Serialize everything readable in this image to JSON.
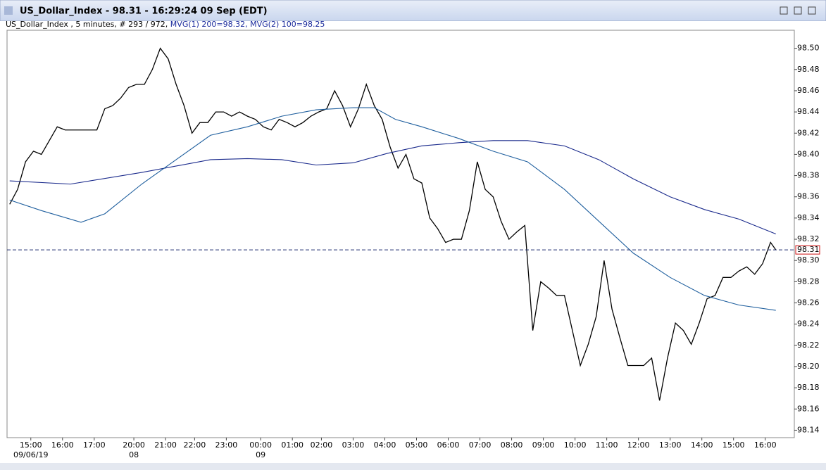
{
  "window_title": "US_Dollar_Index - 98.31 - 16:29:24  09 Sep (EDT)",
  "info_text": "US_Dollar_Index , 5 minutes, # 293 / 972, ",
  "ma_text": "MVG(1) 200=98.32, MVG(2) 100=98.25",
  "chart_data": {
    "type": "line",
    "last_price": 98.31,
    "xlim": [
      -1,
      297
    ],
    "ylim": [
      98.133,
      98.517
    ],
    "xticks": [
      {
        "value": 8,
        "label": "15:00"
      },
      {
        "value": 20,
        "label": "16:00"
      },
      {
        "value": 32,
        "label": "17:00"
      },
      {
        "value": 47,
        "label": "20:00"
      },
      {
        "value": 59,
        "label": "21:00"
      },
      {
        "value": 70,
        "label": "22:00"
      },
      {
        "value": 82,
        "label": "23:00"
      },
      {
        "value": 95,
        "label": "00:00"
      },
      {
        "value": 107,
        "label": "01:00"
      },
      {
        "value": 118,
        "label": "02:00"
      },
      {
        "value": 130,
        "label": "03:00"
      },
      {
        "value": 142,
        "label": "04:00"
      },
      {
        "value": 154,
        "label": "05:00"
      },
      {
        "value": 166,
        "label": "06:00"
      },
      {
        "value": 178,
        "label": "07:00"
      },
      {
        "value": 190,
        "label": "08:00"
      },
      {
        "value": 202,
        "label": "09:00"
      },
      {
        "value": 214,
        "label": "10:00"
      },
      {
        "value": 226,
        "label": "11:00"
      },
      {
        "value": 238,
        "label": "12:00"
      },
      {
        "value": 250,
        "label": "13:00"
      },
      {
        "value": 262,
        "label": "14:00"
      },
      {
        "value": 274,
        "label": "15:00"
      },
      {
        "value": 286,
        "label": "16:00"
      }
    ],
    "xdates": [
      {
        "value": 8,
        "label": "09/06/19"
      },
      {
        "value": 47,
        "label": "08"
      },
      {
        "value": 95,
        "label": "09"
      }
    ],
    "yticks": [
      98.14,
      98.16,
      98.18,
      {
        "value": 98.2,
        "label": "98.20"
      },
      98.22,
      98.24,
      98.26,
      98.28,
      {
        "value": 98.3,
        "label": "98.30"
      },
      98.32,
      98.34,
      98.36,
      98.38,
      {
        "value": 98.4,
        "label": "98.40"
      },
      98.42,
      98.44,
      98.46,
      98.48,
      {
        "value": 98.5,
        "label": "98.50"
      }
    ],
    "series": [
      {
        "color": "#000000",
        "x": [
          0,
          3,
          6,
          9,
          12,
          15,
          18,
          21,
          24,
          27,
          30,
          33,
          36,
          39,
          42,
          45,
          48,
          51,
          54,
          57,
          60,
          63,
          66,
          69,
          72,
          75,
          78,
          81,
          84,
          87,
          90,
          93,
          96,
          99,
          102,
          105,
          108,
          111,
          114,
          117,
          120,
          123,
          126,
          129,
          132,
          135,
          138,
          141,
          144,
          147,
          150,
          153,
          156,
          159,
          162,
          165,
          168,
          171,
          174,
          177,
          180,
          183,
          186,
          189,
          192,
          195,
          198,
          201,
          204,
          207,
          210,
          213,
          216,
          219,
          222,
          225,
          228,
          231,
          234,
          237,
          240,
          243,
          246,
          249,
          252,
          255,
          258,
          261,
          264,
          267,
          270,
          273,
          276,
          279,
          282,
          285,
          288,
          290
        ],
        "values": [
          98.353,
          98.367,
          98.393,
          98.403,
          98.4,
          98.413,
          98.426,
          98.423,
          98.423,
          98.423,
          98.423,
          98.423,
          98.443,
          98.446,
          98.453,
          98.463,
          98.466,
          98.466,
          98.48,
          98.5,
          98.49,
          98.466,
          98.446,
          98.42,
          98.43,
          98.43,
          98.44,
          98.44,
          98.436,
          98.44,
          98.436,
          98.433,
          98.426,
          98.423,
          98.433,
          98.43,
          98.426,
          98.43,
          98.436,
          98.44,
          98.443,
          98.46,
          98.446,
          98.426,
          98.443,
          98.466,
          98.446,
          98.433,
          98.407,
          98.387,
          98.4,
          98.377,
          98.373,
          98.34,
          98.33,
          98.317,
          98.32,
          98.32,
          98.347,
          98.393,
          98.367,
          98.36,
          98.337,
          98.32,
          98.327,
          98.333,
          98.234,
          98.28,
          98.274,
          98.267,
          98.267,
          98.234,
          98.201,
          98.221,
          98.247,
          98.3,
          98.254,
          98.227,
          98.201,
          98.201,
          98.201,
          98.208,
          98.168,
          98.208,
          98.241,
          98.234,
          98.221,
          98.241,
          98.264,
          98.267,
          98.284,
          98.284,
          98.29,
          98.294,
          98.287,
          98.297,
          98.317,
          98.31
        ]
      },
      {
        "color": "#1a2a8c",
        "x": [
          0,
          23,
          50,
          76,
          90,
          103,
          116,
          130,
          143,
          156,
          170,
          183,
          196,
          210,
          223,
          236,
          250,
          263,
          276,
          290
        ],
        "values": [
          98.375,
          98.372,
          98.383,
          98.395,
          98.396,
          98.395,
          98.39,
          98.392,
          98.401,
          98.408,
          98.411,
          98.413,
          98.413,
          98.408,
          98.395,
          98.377,
          98.36,
          98.348,
          98.339,
          98.325
        ]
      },
      {
        "color": "#1f5f9e",
        "x": [
          0,
          12,
          27,
          36,
          50,
          63,
          76,
          90,
          103,
          116,
          130,
          138,
          146,
          156,
          170,
          183,
          196,
          210,
          223,
          236,
          250,
          263,
          276,
          290
        ],
        "values": [
          98.357,
          98.347,
          98.336,
          98.344,
          98.372,
          98.395,
          98.418,
          98.426,
          98.436,
          98.442,
          98.444,
          98.444,
          98.433,
          98.426,
          98.415,
          98.403,
          98.393,
          98.367,
          98.337,
          98.307,
          98.284,
          98.267,
          98.258,
          98.253
        ]
      }
    ]
  }
}
